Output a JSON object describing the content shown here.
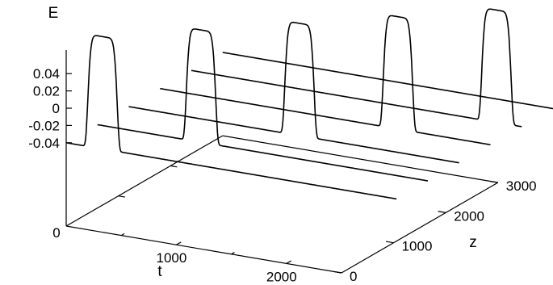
{
  "chart_data": {
    "type": "line",
    "projection": "3d-waterfall",
    "grid": false,
    "legend": "none",
    "axes": {
      "t": {
        "label": "t",
        "range": [
          0,
          2500
        ],
        "ticks": [
          "1000",
          "2000"
        ]
      },
      "z": {
        "label": "z",
        "range": [
          0,
          3000
        ],
        "ticks": [
          "0",
          "1000",
          "2000",
          "3000"
        ]
      },
      "E": {
        "label": "E",
        "range": [
          -0.06,
          0.06
        ],
        "ticks": [
          "0.04",
          "0.02",
          "0",
          "-0.02",
          "-0.04"
        ]
      }
    },
    "floor_origin_label": "0",
    "series": [
      {
        "z": 0,
        "pulse_center_t": 330,
        "pulse_width_t": 150,
        "amplitude": 0.13,
        "baseline": -0.04
      },
      {
        "z": 600,
        "pulse_center_t": 940,
        "pulse_width_t": 150,
        "amplitude": 0.13,
        "baseline": -0.04
      },
      {
        "z": 1200,
        "pulse_center_t": 1550,
        "pulse_width_t": 150,
        "amplitude": 0.13,
        "baseline": -0.04
      },
      {
        "z": 1800,
        "pulse_center_t": 2160,
        "pulse_width_t": 150,
        "amplitude": 0.13,
        "baseline": -0.04
      },
      {
        "z": 2400,
        "pulse_center_t": 2770,
        "pulse_width_t": 150,
        "amplitude": 0.13,
        "baseline": -0.04
      },
      {
        "z": 3000,
        "pulse_center_t": 3380,
        "pulse_width_t": 150,
        "amplitude": 0.13,
        "baseline": -0.04
      }
    ],
    "colors": {
      "line": "#000000"
    }
  }
}
